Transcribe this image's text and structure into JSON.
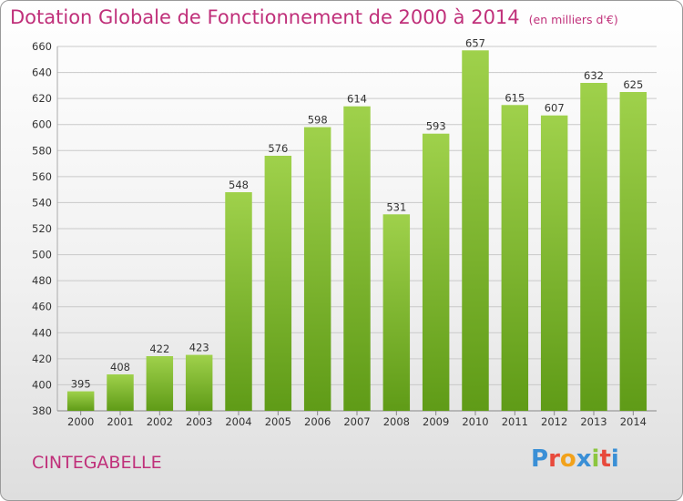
{
  "header": {
    "title": "Dotation Globale de Fonctionnement de 2000 à 2014",
    "subtitle": "(en milliers d'€)"
  },
  "footer": {
    "commune": "CINTEGABELLE",
    "logo_letters": [
      "P",
      "r",
      "o",
      "x",
      "i",
      "t",
      "i"
    ],
    "logo_colors": [
      "#3a8fd6",
      "#e84a3c",
      "#f2a21b",
      "#3a8fd6",
      "#8cc63f",
      "#e84a3c",
      "#3a8fd6"
    ]
  },
  "chart_data": {
    "type": "bar",
    "categories": [
      "2000",
      "2001",
      "2002",
      "2003",
      "2004",
      "2005",
      "2006",
      "2007",
      "2008",
      "2009",
      "2010",
      "2011",
      "2012",
      "2013",
      "2014"
    ],
    "values": [
      395,
      408,
      422,
      423,
      548,
      576,
      598,
      614,
      531,
      593,
      657,
      615,
      607,
      632,
      625
    ],
    "ylim": [
      380,
      660
    ],
    "yticks": [
      380,
      400,
      420,
      440,
      460,
      480,
      500,
      520,
      540,
      560,
      580,
      600,
      620,
      640,
      660
    ],
    "grid": true,
    "bar_color_top": "#9fd14b",
    "bar_color_bottom": "#5f9b17"
  }
}
